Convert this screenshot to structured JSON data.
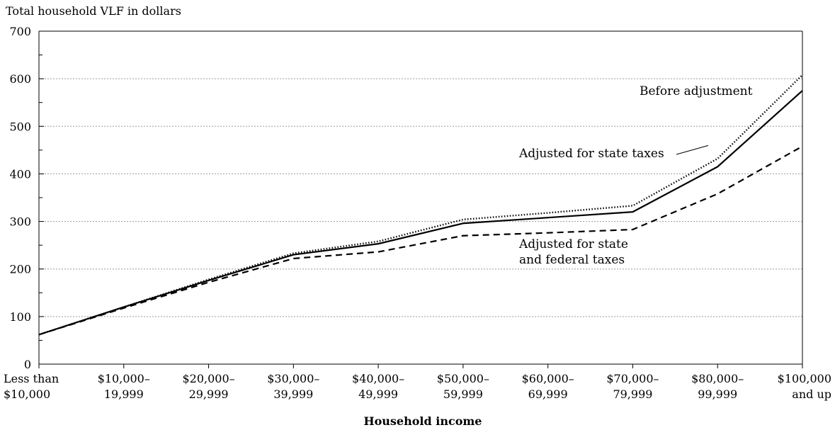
{
  "chart_data": {
    "type": "line",
    "ylabel": "Total household VLF in dollars",
    "xlabel": "Household income",
    "ylim": [
      0,
      700
    ],
    "yticks": [
      0,
      100,
      200,
      300,
      400,
      500,
      600,
      700
    ],
    "grid": true,
    "categories": [
      [
        "Less than",
        "$10,000"
      ],
      [
        "$10,000–",
        "19,999"
      ],
      [
        "$20,000–",
        "29,999"
      ],
      [
        "$30,000–",
        "39,999"
      ],
      [
        "$40,000–",
        "49,999"
      ],
      [
        "$50,000–",
        "59,999"
      ],
      [
        "$60,000–",
        "69,999"
      ],
      [
        "$70,000–",
        "79,999"
      ],
      [
        "$80,000–",
        "99,999"
      ],
      [
        "$100,000",
        "and up"
      ]
    ],
    "series": [
      {
        "name": "Before adjustment",
        "style": "dotted",
        "values": [
          62,
          120,
          178,
          233,
          258,
          304,
          318,
          333,
          432,
          608
        ]
      },
      {
        "name": "Adjusted for state taxes",
        "style": "solid",
        "values": [
          62,
          120,
          176,
          230,
          253,
          296,
          308,
          320,
          415,
          575
        ]
      },
      {
        "name": "Adjusted for state and federal taxes",
        "label_lines": [
          "Adjusted for state",
          "and federal taxes"
        ],
        "style": "dashed",
        "values": [
          62,
          118,
          172,
          222,
          236,
          270,
          276,
          283,
          358,
          458
        ]
      }
    ]
  }
}
